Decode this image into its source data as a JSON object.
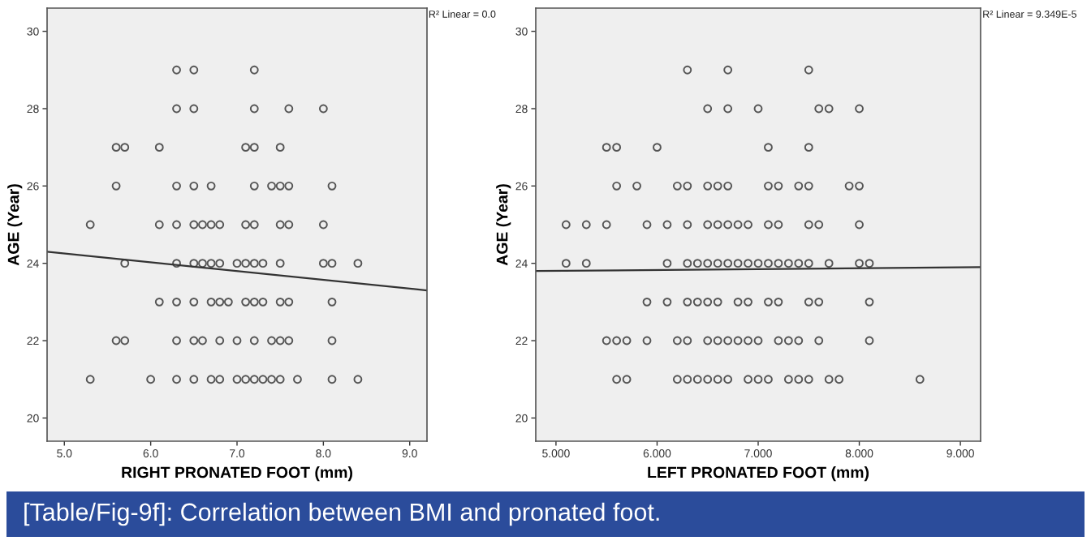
{
  "chart_data": [
    {
      "type": "scatter",
      "xlabel": "RIGHT PRONATED FOOT (mm)",
      "ylabel": "AGE (Year)",
      "xlim": [
        4.8,
        9.2
      ],
      "ylim": [
        19.4,
        30.6
      ],
      "xticks": [
        {
          "value": 5,
          "label": "5.0"
        },
        {
          "value": 6,
          "label": "6.0"
        },
        {
          "value": 7,
          "label": "7.0"
        },
        {
          "value": 8,
          "label": "8.0"
        },
        {
          "value": 9,
          "label": "9.0"
        }
      ],
      "yticks": [
        20,
        22,
        24,
        26,
        28,
        30
      ],
      "grid": false,
      "annotations": [
        "R² Linear = 0.0",
        "[Table/Fig-9f]: Correlation between BMI and pronated foot."
      ],
      "series": [
        {
          "marker": "circle",
          "color": "#555555",
          "x": [
            6.3,
            6.5,
            7.2,
            6.3,
            6.5,
            7.2,
            7.6,
            8.0,
            5.6,
            5.7,
            6.1,
            7.1,
            7.2,
            7.5,
            5.6,
            6.3,
            6.5,
            6.7,
            7.2,
            7.4,
            7.5,
            7.6,
            8.1,
            5.3,
            6.1,
            6.3,
            6.5,
            6.6,
            6.7,
            6.8,
            7.1,
            7.2,
            7.5,
            7.6,
            8.0,
            5.7,
            6.3,
            6.5,
            6.6,
            6.7,
            6.8,
            7.0,
            7.1,
            7.2,
            7.3,
            7.5,
            8.0,
            8.1,
            8.4,
            6.1,
            6.3,
            6.5,
            6.7,
            6.8,
            6.9,
            7.1,
            7.2,
            7.3,
            7.5,
            7.6,
            8.1,
            5.6,
            5.7,
            6.3,
            6.5,
            6.6,
            6.8,
            7.0,
            7.2,
            7.4,
            7.5,
            7.6,
            8.1,
            5.3,
            6.0,
            6.3,
            6.5,
            6.7,
            6.8,
            7.0,
            7.1,
            7.2,
            7.3,
            7.4,
            7.5,
            7.7,
            8.1,
            8.4
          ],
          "values": [
            29,
            29,
            29,
            28,
            28,
            28,
            28,
            28,
            27,
            27,
            27,
            27,
            27,
            27,
            26,
            26,
            26,
            26,
            26,
            26,
            26,
            26,
            26,
            25,
            25,
            25,
            25,
            25,
            25,
            25,
            25,
            25,
            25,
            25,
            25,
            24,
            24,
            24,
            24,
            24,
            24,
            24,
            24,
            24,
            24,
            24,
            24,
            24,
            24,
            23,
            23,
            23,
            23,
            23,
            23,
            23,
            23,
            23,
            23,
            23,
            23,
            22,
            22,
            22,
            22,
            22,
            22,
            22,
            22,
            22,
            22,
            22,
            22,
            21,
            21,
            21,
            21,
            21,
            21,
            21,
            21,
            21,
            21,
            21,
            21,
            21,
            21,
            21
          ]
        },
        {
          "type": "line",
          "color": "#333333",
          "x": [
            4.8,
            9.2
          ],
          "values": [
            24.3,
            23.3
          ]
        }
      ]
    },
    {
      "type": "scatter",
      "xlabel": "LEFT PRONATED FOOT (mm)",
      "ylabel": "AGE (Year)",
      "xlim": [
        4.8,
        9.2
      ],
      "ylim": [
        19.4,
        30.6
      ],
      "xticks": [
        {
          "value": 5,
          "label": "5.000"
        },
        {
          "value": 6,
          "label": "6.000"
        },
        {
          "value": 7,
          "label": "7.000"
        },
        {
          "value": 8,
          "label": "8.000"
        },
        {
          "value": 9,
          "label": "9.000"
        }
      ],
      "yticks": [
        20,
        22,
        24,
        26,
        28,
        30
      ],
      "grid": false,
      "annotations": [
        "R² Linear = 9.349E-5"
      ],
      "series": [
        {
          "marker": "circle",
          "color": "#555555",
          "x": [
            6.3,
            6.7,
            7.5,
            6.5,
            6.7,
            7.0,
            7.6,
            7.7,
            8.0,
            5.5,
            5.6,
            6.0,
            7.1,
            7.5,
            5.6,
            5.8,
            6.2,
            6.3,
            6.5,
            6.6,
            6.7,
            7.1,
            7.2,
            7.4,
            7.5,
            7.9,
            8.0,
            5.1,
            5.3,
            5.5,
            5.9,
            6.1,
            6.3,
            6.5,
            6.6,
            6.7,
            6.8,
            6.9,
            7.1,
            7.2,
            7.5,
            7.6,
            8.0,
            5.1,
            5.3,
            6.1,
            6.3,
            6.4,
            6.5,
            6.6,
            6.7,
            6.8,
            6.9,
            7.0,
            7.1,
            7.2,
            7.3,
            7.4,
            7.5,
            7.7,
            8.0,
            8.1,
            5.9,
            6.1,
            6.3,
            6.4,
            6.5,
            6.6,
            6.8,
            6.9,
            7.1,
            7.2,
            7.5,
            7.6,
            8.1,
            5.5,
            5.6,
            5.7,
            5.9,
            6.2,
            6.3,
            6.5,
            6.6,
            6.7,
            6.8,
            6.9,
            7.0,
            7.2,
            7.3,
            7.4,
            7.6,
            8.1,
            5.6,
            5.7,
            6.2,
            6.3,
            6.4,
            6.5,
            6.6,
            6.7,
            6.9,
            7.0,
            7.1,
            7.3,
            7.4,
            7.5,
            7.7,
            7.8,
            8.6
          ],
          "values": [
            29,
            29,
            29,
            28,
            28,
            28,
            28,
            28,
            28,
            27,
            27,
            27,
            27,
            27,
            26,
            26,
            26,
            26,
            26,
            26,
            26,
            26,
            26,
            26,
            26,
            26,
            26,
            25,
            25,
            25,
            25,
            25,
            25,
            25,
            25,
            25,
            25,
            25,
            25,
            25,
            25,
            25,
            25,
            24,
            24,
            24,
            24,
            24,
            24,
            24,
            24,
            24,
            24,
            24,
            24,
            24,
            24,
            24,
            24,
            24,
            24,
            24,
            23,
            23,
            23,
            23,
            23,
            23,
            23,
            23,
            23,
            23,
            23,
            23,
            23,
            22,
            22,
            22,
            22,
            22,
            22,
            22,
            22,
            22,
            22,
            22,
            22,
            22,
            22,
            22,
            22,
            22,
            21,
            21,
            21,
            21,
            21,
            21,
            21,
            21,
            21,
            21,
            21,
            21,
            21,
            21,
            21,
            21,
            21
          ]
        },
        {
          "type": "line",
          "color": "#333333",
          "x": [
            4.8,
            9.2
          ],
          "values": [
            23.8,
            23.9
          ]
        }
      ]
    }
  ]
}
